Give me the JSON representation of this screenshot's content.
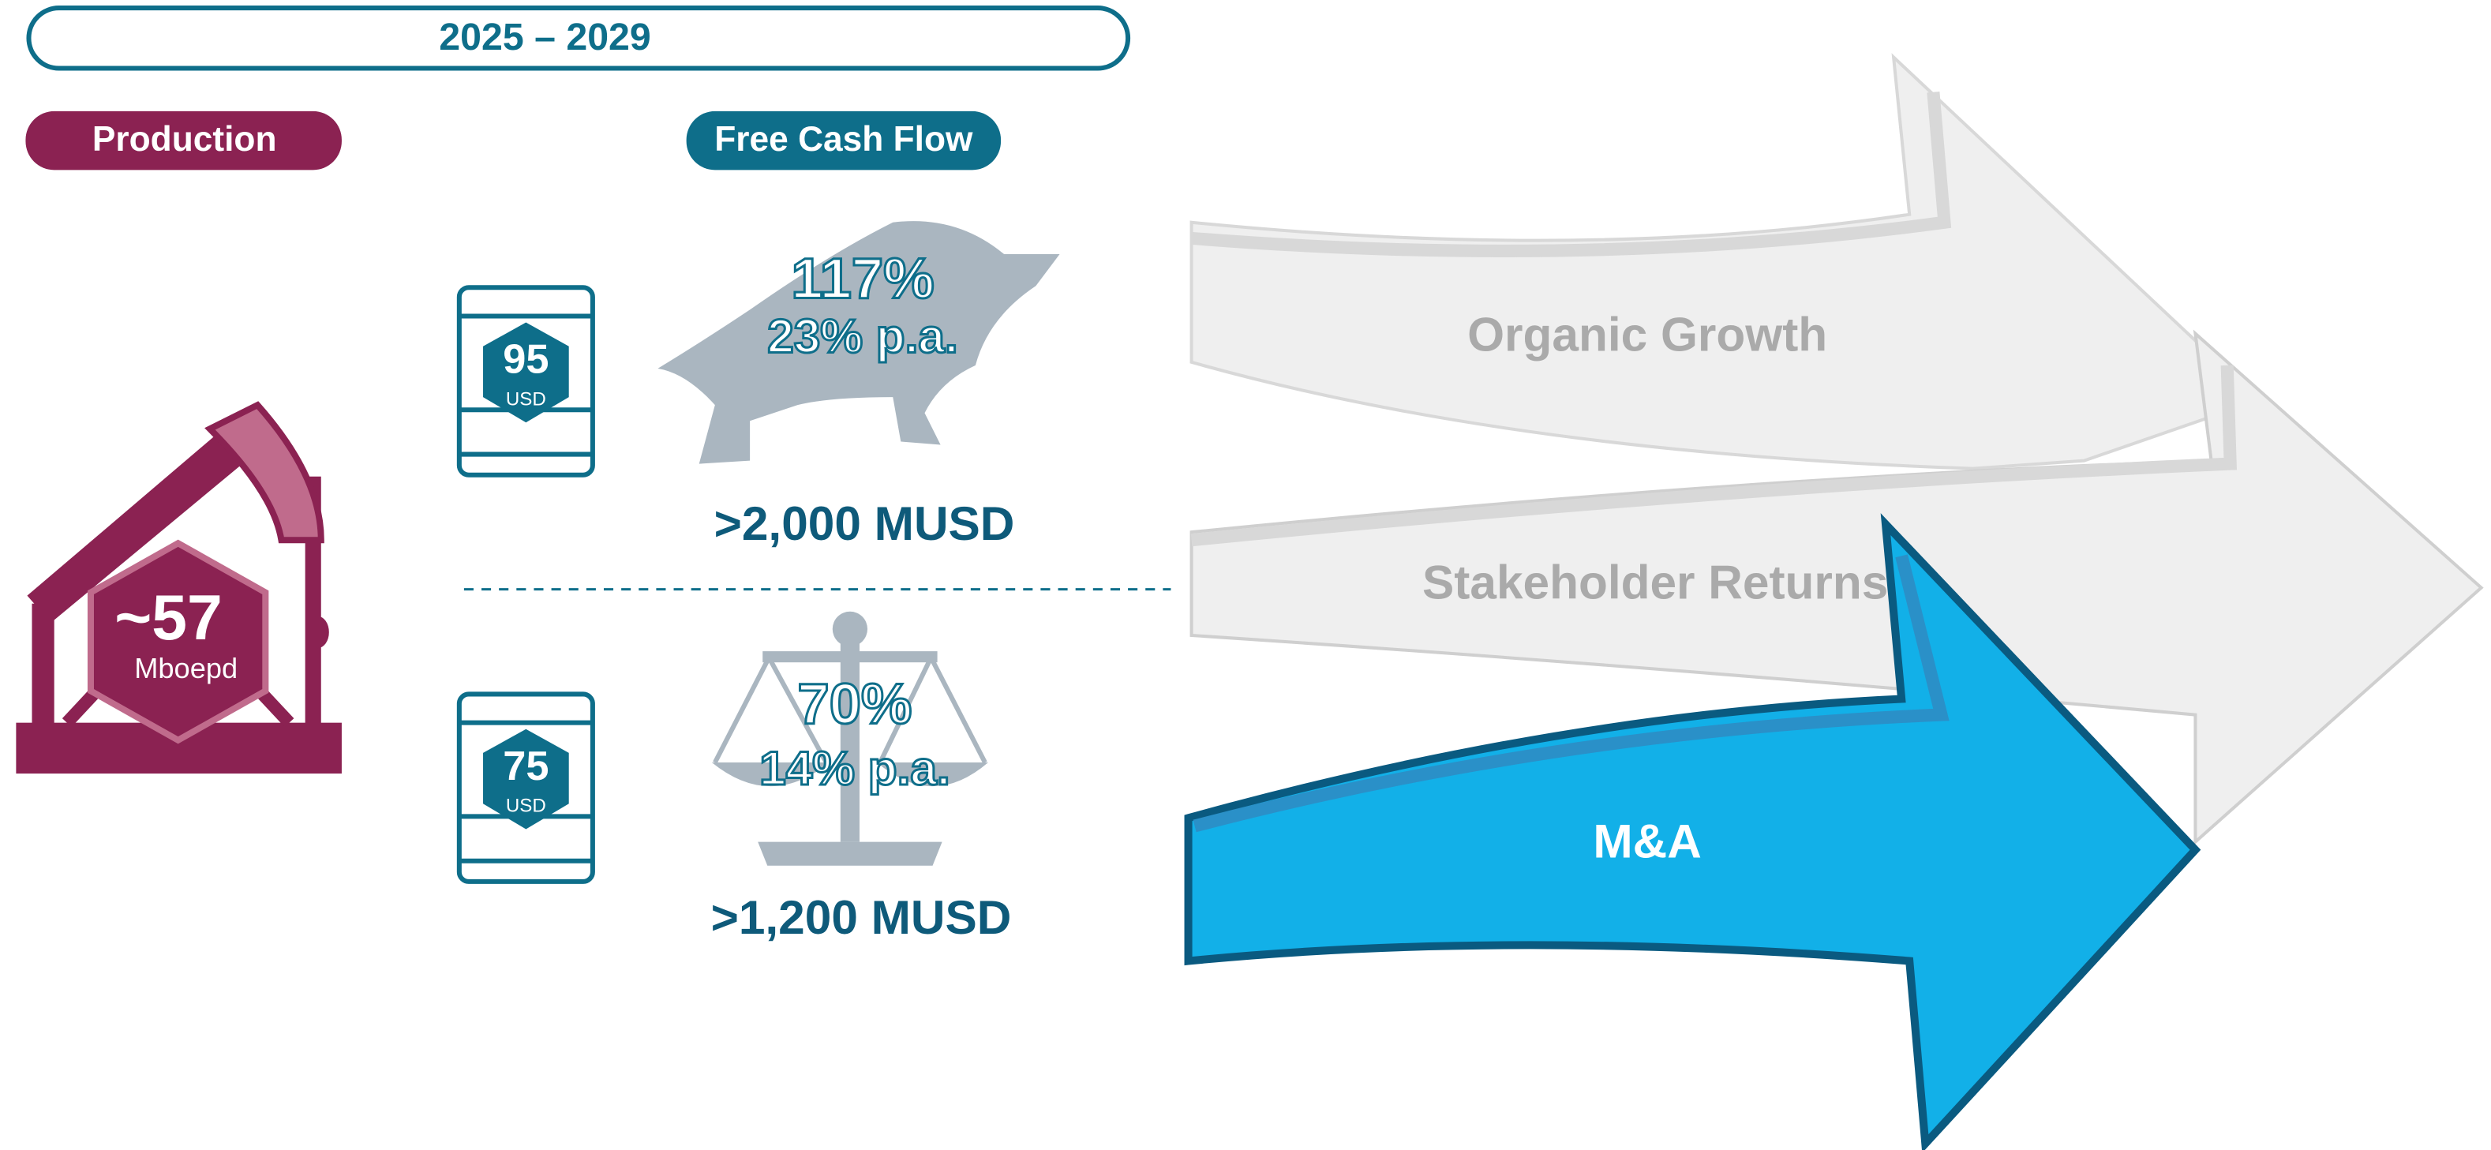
{
  "header": {
    "period": "2025 – 2029"
  },
  "production": {
    "label": "Production",
    "value": "~57",
    "unit": "Mboepd"
  },
  "free_cash_flow": {
    "label": "Free Cash Flow",
    "scenarios": [
      {
        "oil_price": "95",
        "currency": "USD",
        "growth": "117%",
        "annual": "23% p.a.",
        "amount": ">2,000 MUSD"
      },
      {
        "oil_price": "75",
        "currency": "USD",
        "growth": "70%",
        "annual": "14% p.a.",
        "amount": ">1,200 MUSD"
      }
    ]
  },
  "arrows": [
    "Organic Growth",
    "Stakeholder Returns",
    "M&A"
  ]
}
